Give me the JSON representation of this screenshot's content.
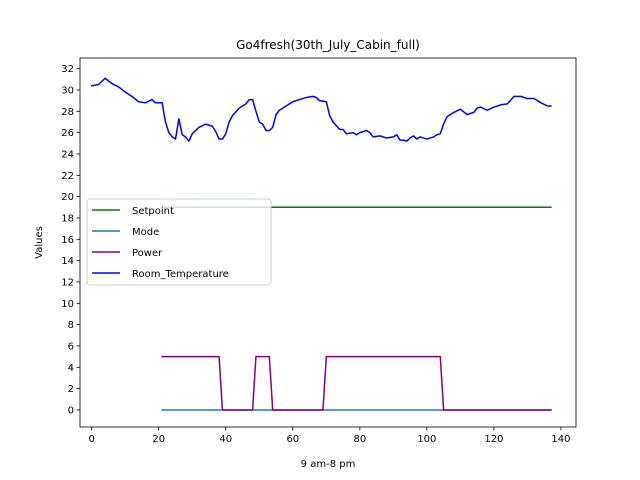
{
  "chart_data": {
    "type": "line",
    "title": "Go4fresh(30th_July_Cabin_full)",
    "xlabel": "9 am-8 pm",
    "ylabel": "Values",
    "xlim": [
      -3.5,
      144.5
    ],
    "ylim": [
      -1.6,
      33.0
    ],
    "xticks": [
      0,
      20,
      40,
      60,
      80,
      100,
      120,
      140
    ],
    "yticks": [
      0,
      2,
      4,
      6,
      8,
      10,
      12,
      14,
      16,
      18,
      20,
      22,
      24,
      26,
      28,
      30,
      32
    ],
    "grid": false,
    "legend_placement": "center-left",
    "series": [
      {
        "name": "Setpoint",
        "color": "#008000",
        "x": [
          21,
          137
        ],
        "y": [
          19,
          19
        ]
      },
      {
        "name": "Mode",
        "color": "#1f77b4",
        "x": [
          21,
          137
        ],
        "y": [
          0,
          0
        ]
      },
      {
        "name": "Power",
        "color": "#800080",
        "x": [
          21,
          38,
          39,
          48,
          49,
          53,
          54,
          69,
          70,
          104,
          105,
          137
        ],
        "y": [
          5,
          5,
          0,
          0,
          5,
          5,
          0,
          0,
          5,
          5,
          0,
          0
        ]
      },
      {
        "name": "Room_Temperature",
        "color": "#0000ff",
        "x": [
          0,
          2,
          4,
          6,
          8,
          10,
          12,
          14,
          16,
          18,
          19,
          21,
          22,
          23,
          24,
          25,
          26,
          27,
          28,
          29,
          30,
          32,
          34,
          36,
          37,
          38,
          39,
          40,
          41,
          42,
          44,
          46,
          47,
          48,
          49,
          50,
          51,
          52,
          53,
          54,
          55,
          56,
          58,
          60,
          62,
          64,
          66,
          67,
          68,
          70,
          71,
          72,
          74,
          75,
          76,
          78,
          79,
          80,
          82,
          83,
          84,
          86,
          88,
          90,
          91,
          92,
          93,
          94,
          95,
          96,
          97,
          98,
          100,
          102,
          103,
          104,
          105,
          106,
          108,
          110,
          112,
          114,
          115,
          116,
          118,
          120,
          122,
          124,
          126,
          128,
          130,
          132,
          134,
          136,
          137
        ],
        "y": [
          30.4,
          30.5,
          31.1,
          30.6,
          30.3,
          29.8,
          29.4,
          28.9,
          28.8,
          29.1,
          28.8,
          28.8,
          27.0,
          26.0,
          25.6,
          25.4,
          27.3,
          25.8,
          25.6,
          25.2,
          25.9,
          26.5,
          26.8,
          26.6,
          26.1,
          25.4,
          25.4,
          25.9,
          27.0,
          27.6,
          28.3,
          28.7,
          29.1,
          29.1,
          28.0,
          27.0,
          26.8,
          26.2,
          26.2,
          26.5,
          27.7,
          28.1,
          28.5,
          28.9,
          29.1,
          29.3,
          29.4,
          29.3,
          29.0,
          28.9,
          27.6,
          27.0,
          26.3,
          26.3,
          25.9,
          26.0,
          25.8,
          26.0,
          26.2,
          26.0,
          25.6,
          25.7,
          25.5,
          25.6,
          25.8,
          25.3,
          25.3,
          25.2,
          25.5,
          25.7,
          25.4,
          25.6,
          25.4,
          25.6,
          25.8,
          25.9,
          26.8,
          27.5,
          27.9,
          28.2,
          27.7,
          27.9,
          28.3,
          28.4,
          28.1,
          28.4,
          28.6,
          28.7,
          29.4,
          29.4,
          29.2,
          29.2,
          28.8,
          28.5,
          28.5
        ]
      }
    ]
  }
}
